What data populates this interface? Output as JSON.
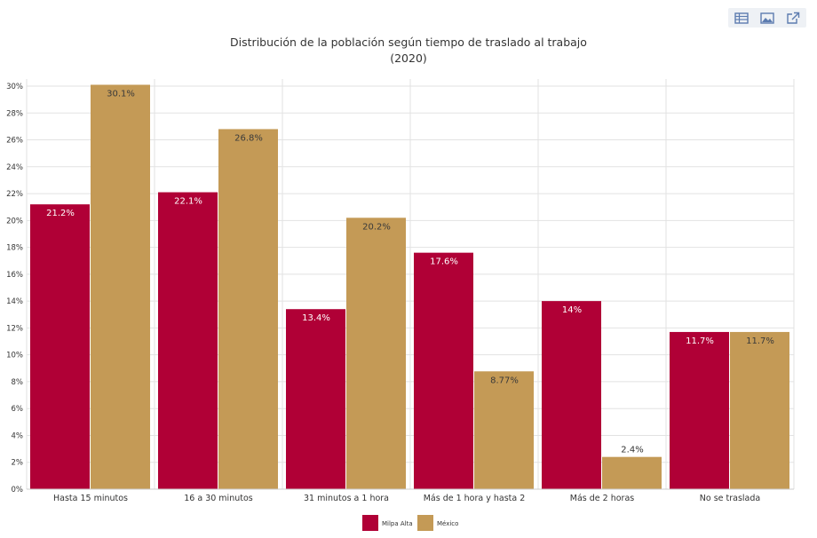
{
  "toolbar": {
    "icons": [
      "table-icon",
      "image-icon",
      "external-link-icon"
    ],
    "icon_color": "#5c7cb0"
  },
  "chart_data": {
    "type": "bar",
    "title": "Distribución de la población según tiempo de traslado al trabajo",
    "subtitle": "(2020)",
    "categories": [
      "Hasta 15 minutos",
      "16 a 30 minutos",
      "31 minutos a 1 hora",
      "Más de 1 hora y hasta 2",
      "Más de 2 horas",
      "No se traslada"
    ],
    "series": [
      {
        "name": "Milpa Alta",
        "color": "#b00036",
        "values": [
          21.2,
          22.1,
          13.4,
          17.6,
          14,
          11.7
        ],
        "labels": [
          "21.2%",
          "22.1%",
          "13.4%",
          "17.6%",
          "14%",
          "11.7%"
        ]
      },
      {
        "name": "México",
        "color": "#c49a56",
        "values": [
          30.1,
          26.8,
          20.2,
          8.77,
          2.4,
          11.7
        ],
        "labels": [
          "30.1%",
          "26.8%",
          "20.2%",
          "8.77%",
          "2.4%",
          "11.7%"
        ]
      }
    ],
    "ylim": [
      0,
      30
    ],
    "yticks": [
      "0%",
      "2%",
      "4%",
      "6%",
      "8%",
      "10%",
      "12%",
      "14%",
      "16%",
      "18%",
      "20%",
      "22%",
      "24%",
      "26%",
      "28%",
      "30%"
    ],
    "xlabel": "",
    "ylabel": "",
    "grid": true,
    "legend_position": "bottom-center"
  }
}
